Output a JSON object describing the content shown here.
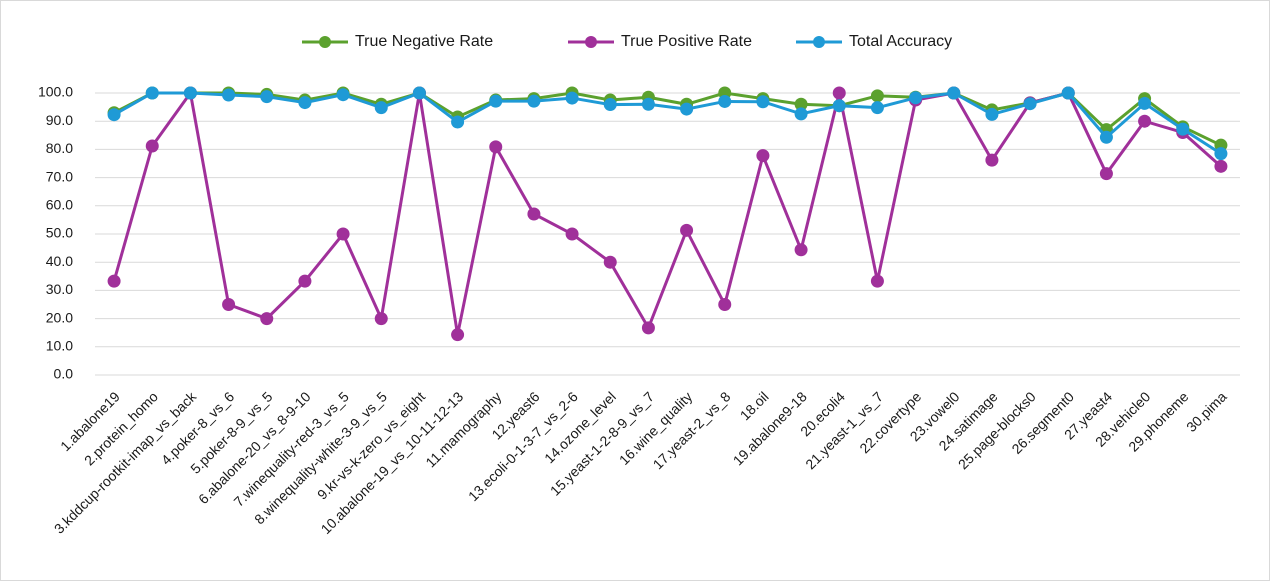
{
  "chart_data": {
    "type": "line",
    "categories": [
      "1.abalone19",
      "2.protein_homo",
      "3.kddcup-rootkit-imap_vs_back",
      "4.poker-8_vs_6",
      "5.poker-8-9_vs_5",
      "6.abalone-20_vs_8-9-10",
      "7.winequality-red-3_vs_5",
      "8.winequality-white-3-9_vs_5",
      "9.kr-vs-k-zero_vs_eight",
      "10.abalone-19_vs_10-11-12-13",
      "11.mamography",
      "12.yeast6",
      "13.ecoli-0-1-3-7_vs_2-6",
      "14.ozone_level",
      "15.yeast-1-2-8-9_vs_7",
      "16.wine_quality",
      "17.yeast-2_vs_8",
      "18.oil",
      "19.abalone9-18",
      "20.ecoli4",
      "21.yeast-1_vs_7",
      "22.covertype",
      "23.vowel0",
      "24.satimage",
      "25.page-blocks0",
      "26.segment0",
      "27.yeast4",
      "28.vehicle0",
      "29.phoneme",
      "30.pima"
    ],
    "series": [
      {
        "name": "True Negative Rate",
        "color": "#5ba12e",
        "values": [
          93,
          100,
          100,
          100,
          99.5,
          97.5,
          100,
          96,
          100,
          91.5,
          97.5,
          98,
          100,
          97.5,
          98.5,
          96,
          100,
          98,
          96,
          95.5,
          99,
          98.5,
          100,
          94,
          96.5,
          100,
          87,
          98,
          88,
          81.5
        ]
      },
      {
        "name": "True Positive Rate",
        "color": "#a0309a",
        "values": [
          33.3,
          81.2,
          100,
          25,
          20,
          33.3,
          50,
          20,
          100,
          14.3,
          80.9,
          57.1,
          50,
          40,
          16.7,
          51.3,
          25,
          77.8,
          44.4,
          100,
          33.3,
          97.5,
          100,
          76.2,
          96.5,
          100,
          71.4,
          90,
          86,
          74
        ]
      },
      {
        "name": "Total Accuracy",
        "color": "#1f9ad6",
        "values": [
          92.3,
          100,
          100,
          99.3,
          98.7,
          96.6,
          99.4,
          94.8,
          100,
          89.7,
          97.1,
          97.1,
          98.2,
          95.9,
          96,
          94.3,
          97,
          96.9,
          92.6,
          95.5,
          94.8,
          98.3,
          100,
          92.4,
          96.2,
          100,
          84.3,
          96.3,
          87.2,
          78.5
        ]
      }
    ],
    "ylim": [
      0,
      100
    ],
    "yticks": [
      {
        "value": 0,
        "label": "0.0"
      },
      {
        "value": 10,
        "label": "10.0"
      },
      {
        "value": 20,
        "label": "20.0"
      },
      {
        "value": 30,
        "label": "30.0"
      },
      {
        "value": 40,
        "label": "40.0"
      },
      {
        "value": 50,
        "label": "50.0"
      },
      {
        "value": 60,
        "label": "60.0"
      },
      {
        "value": 70,
        "label": "70.0"
      },
      {
        "value": 80,
        "label": "80.0"
      },
      {
        "value": 90,
        "label": "90.0"
      },
      {
        "value": 100,
        "label": "100.0"
      }
    ],
    "grid": true,
    "legend": "top"
  }
}
